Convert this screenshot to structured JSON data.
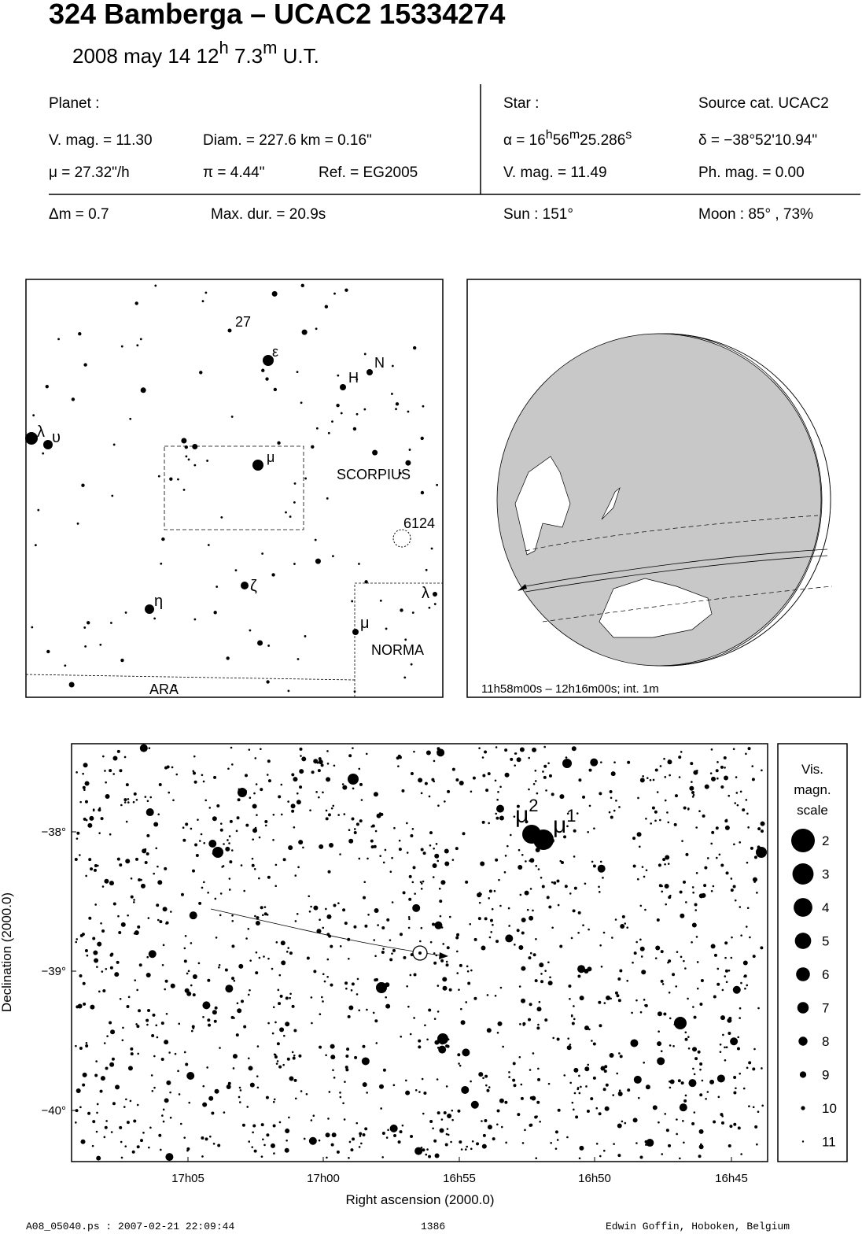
{
  "header": {
    "title": "324 Bamberga  –  UCAC2 15334274",
    "date_parts": [
      "2008 may 14  12",
      "h",
      " 7.3",
      "m",
      " U.T."
    ]
  },
  "planet": {
    "heading": "Planet :",
    "vmag": "V. mag. = 11.30",
    "diam": "Diam. = 227.6 km = 0.16\"",
    "mu": "μ =  27.32\"/h",
    "pi": "π =  4.44\"",
    "ref": "Ref. = EG2005",
    "dm": "Δm = 0.7",
    "maxdur": "Max. dur. = 20.9s"
  },
  "star": {
    "heading": "Star :",
    "source": "Source cat.  UCAC2",
    "alpha_parts": [
      "α = 16",
      "h",
      "56",
      "m",
      "25.286",
      "s"
    ],
    "delta": "δ = −38°52'10.94\"",
    "vmag": "V. mag. = 11.49",
    "phmag": "Ph. mag. =  0.00",
    "sun": "Sun : 151°",
    "moon": "Moon :  85° , 73%"
  },
  "finder": {
    "labels": [
      "27",
      "ε",
      "H",
      "N",
      "λ",
      "υ",
      "μ",
      "SCORPIUS",
      "6124",
      "ζ",
      "η",
      "λ",
      "μ",
      "NORMA",
      "ARA"
    ]
  },
  "globe": {
    "caption": "11h58m00s – 12h16m00s; int.  1m"
  },
  "chart": {
    "x_ticks": [
      "17h05",
      "17h00",
      "16h55",
      "16h50",
      "16h45"
    ],
    "y_ticks": [
      "−38°",
      "−39°",
      "−40°"
    ],
    "x_label": "Right ascension (2000.0)",
    "y_label": "Declination (2000.0)",
    "mu2": [
      "μ",
      "2"
    ],
    "mu1": [
      "μ",
      "1"
    ]
  },
  "legend": {
    "title": [
      "Vis.",
      "magn.",
      "scale"
    ],
    "mags": [
      2,
      3,
      4,
      5,
      6,
      7,
      8,
      9,
      10,
      11
    ]
  },
  "footer": {
    "file": "A08_05040.ps : 2007-02-21 22:09:44",
    "number": "1386",
    "author": "Edwin Goffin, Hoboken, Belgium"
  }
}
